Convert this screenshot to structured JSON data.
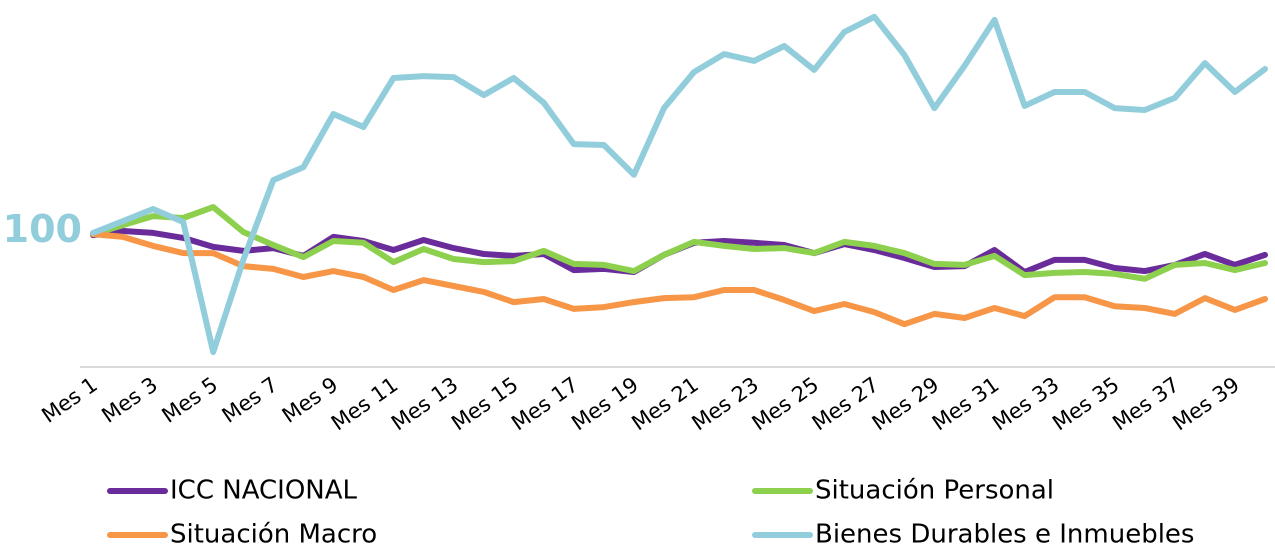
{
  "chart_data": {
    "type": "line",
    "categories": [
      "Mes 1",
      null,
      "Mes 3",
      null,
      "Mes 5",
      null,
      "Mes 7",
      null,
      "Mes 9",
      null,
      "Mes 11",
      null,
      "Mes 13",
      null,
      "Mes 15",
      null,
      "Mes 17",
      null,
      "Mes 19",
      null,
      "Mes 21",
      null,
      "Mes 23",
      null,
      "Mes 25",
      null,
      "Mes 27",
      null,
      "Mes 29",
      null,
      "Mes 31",
      null,
      "Mes 33",
      null,
      "Mes 35",
      null,
      "Mes 37",
      null,
      "Mes 39",
      null
    ],
    "series": [
      {
        "name": "ICC NACIONAL",
        "color": "#6a2c9a",
        "values": [
          99.5,
          100.8,
          100.2,
          98.6,
          95.7,
          94.4,
          95.3,
          92.8,
          98.9,
          97.6,
          94.7,
          97.9,
          95.3,
          93.4,
          92.8,
          93.4,
          88.2,
          88.6,
          87.6,
          93.1,
          97.0,
          97.6,
          97.0,
          96.3,
          93.7,
          96.6,
          94.7,
          92.1,
          89.2,
          89.5,
          94.7,
          87.6,
          91.5,
          91.5,
          88.9,
          87.9,
          89.9,
          93.4,
          89.9,
          93.1
        ]
      },
      {
        "name": "Situación Personal",
        "color": "#8cd04e",
        "values": [
          99.8,
          102.7,
          105.6,
          105.0,
          108.5,
          100.5,
          96.3,
          92.4,
          97.6,
          97.0,
          90.8,
          95.0,
          91.8,
          90.8,
          91.1,
          94.4,
          90.2,
          89.9,
          87.9,
          93.1,
          97.3,
          96.0,
          95.0,
          95.3,
          93.7,
          97.3,
          96.0,
          93.7,
          90.2,
          89.9,
          92.8,
          86.6,
          87.3,
          87.6,
          87.0,
          85.4,
          89.9,
          90.5,
          88.2,
          90.5
        ]
      },
      {
        "name": "Situación Macro",
        "color": "#f79646",
        "values": [
          99.8,
          98.9,
          96.0,
          93.7,
          93.7,
          89.5,
          88.6,
          86.0,
          87.9,
          86.0,
          81.8,
          85.0,
          83.1,
          81.2,
          77.9,
          78.9,
          75.7,
          76.3,
          77.9,
          79.2,
          79.5,
          81.8,
          81.8,
          78.6,
          75.0,
          77.3,
          74.7,
          70.8,
          74.1,
          72.8,
          76.0,
          73.4,
          79.5,
          79.5,
          76.6,
          76.0,
          74.1,
          79.2,
          75.4,
          78.9
        ]
      },
      {
        "name": "Bienes Durables e Inmuebles",
        "color": "#92cddc",
        "values": [
          100.2,
          104.0,
          107.9,
          103.7,
          61.8,
          91.5,
          117.2,
          121.4,
          138.5,
          134.3,
          150.1,
          150.7,
          150.4,
          144.6,
          150.1,
          142.1,
          128.8,
          128.5,
          118.9,
          140.4,
          152.0,
          157.8,
          155.6,
          160.4,
          152.7,
          164.9,
          169.8,
          157.5,
          140.4,
          154.0,
          168.8,
          141.1,
          145.6,
          145.6,
          140.4,
          139.8,
          143.7,
          154.9,
          145.6,
          153.0
        ]
      }
    ],
    "ylim": [
      57,
      172
    ],
    "yticks": [
      100
    ],
    "grid": false
  }
}
